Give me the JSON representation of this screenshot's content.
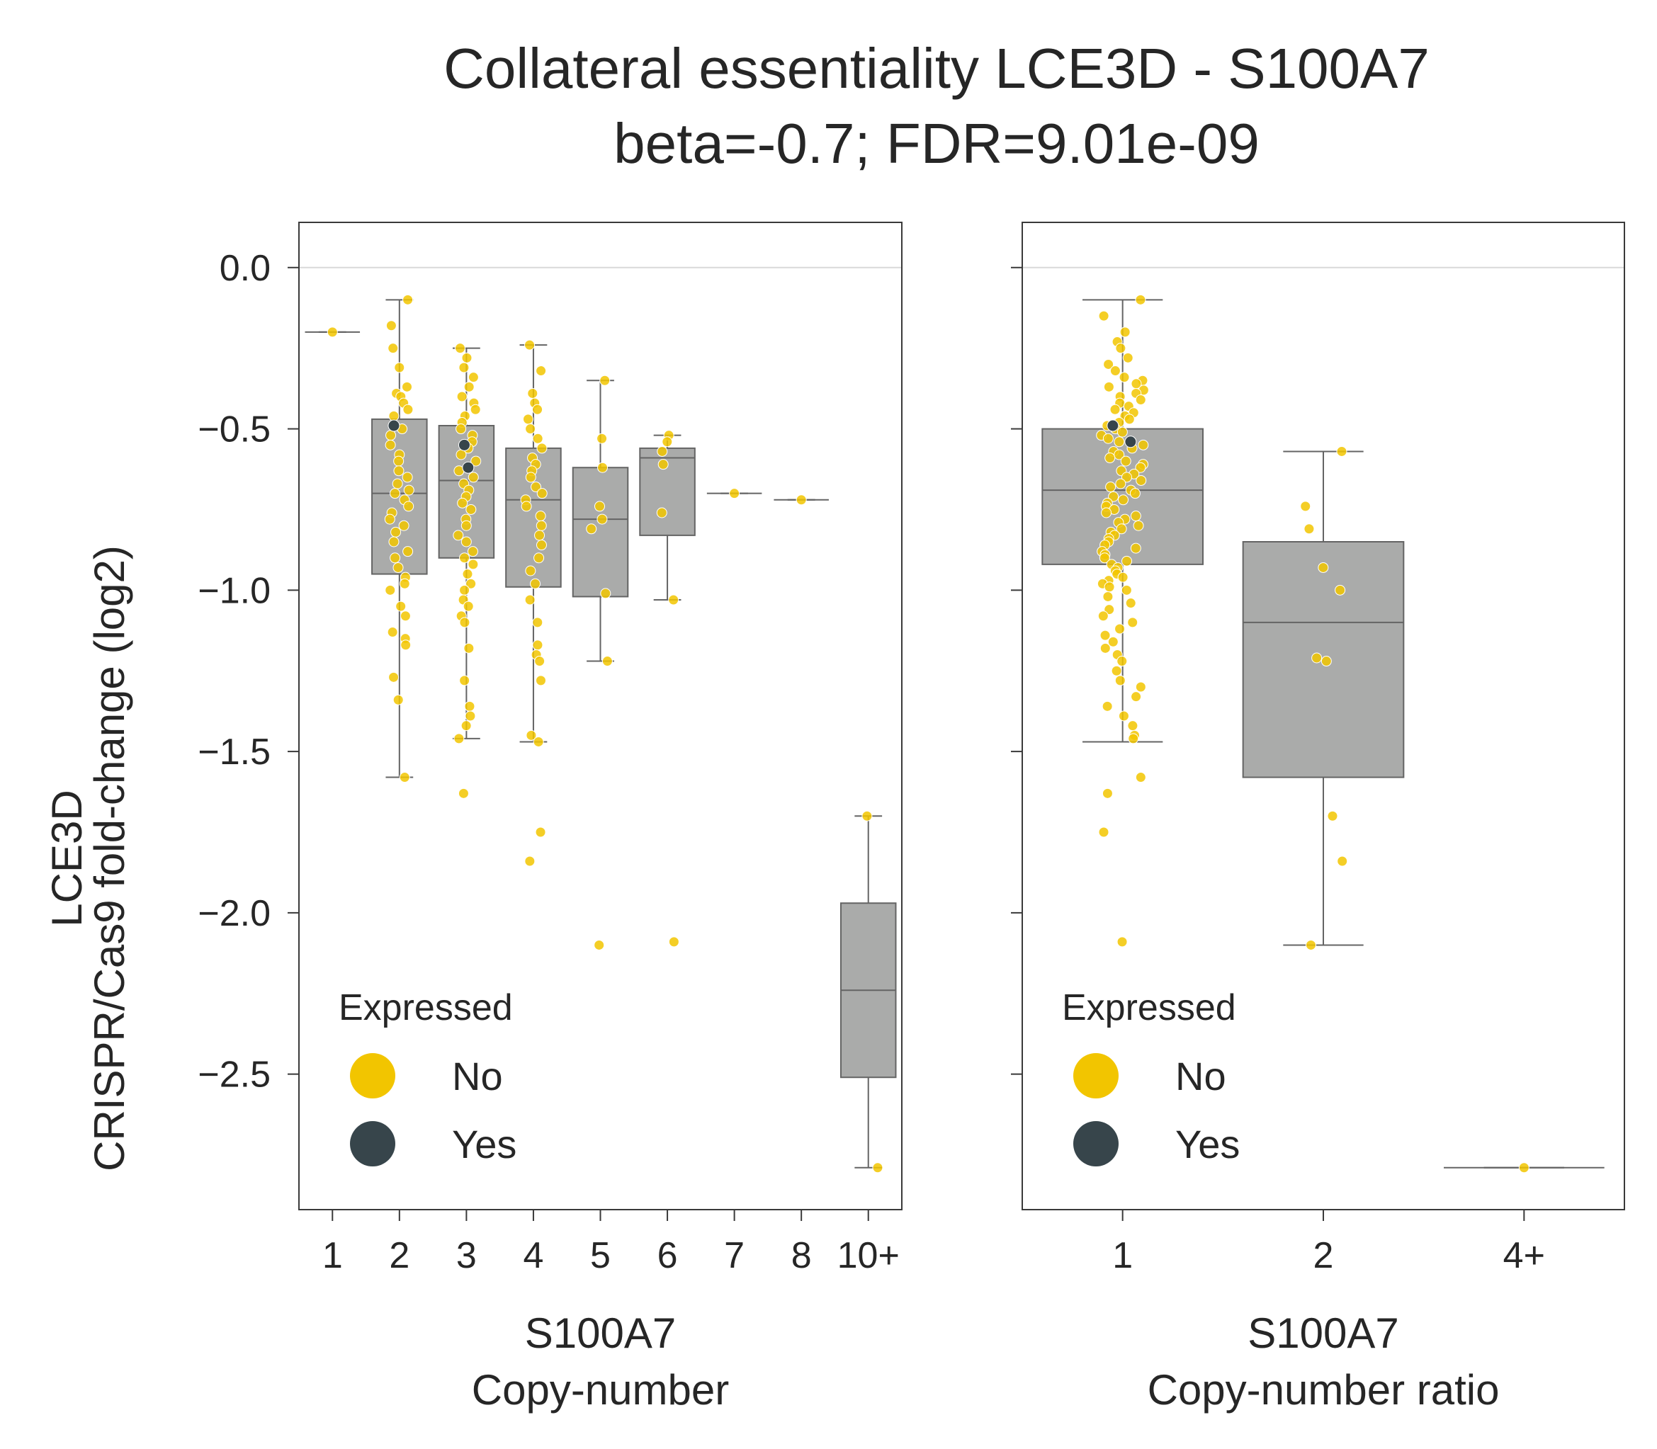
{
  "figure": {
    "title_line1": "Collateral essentiality LCE3D - S100A7",
    "title_line2": "beta=-0.7; FDR=9.01e-09",
    "ylabel_line1": "LCE3D",
    "ylabel_line2": "CRISPR/Cas9 fold-change (log2)"
  },
  "colors": {
    "box_fill": "#aaabaa",
    "box_edge": "#646464",
    "not_expressed": "#f2c500",
    "expressed": "#37454b",
    "frame": "#3a3a3a",
    "zero_line": "#d9d9d9"
  },
  "legend": {
    "title": "Expressed",
    "items": [
      {
        "label": "No",
        "color": "#f2c500"
      },
      {
        "label": "Yes",
        "color": "#37454b"
      }
    ]
  },
  "chart_data": [
    {
      "type": "box",
      "xlabel_line1": "S100A7",
      "xlabel_line2": "Copy-number",
      "ylim": [
        -2.92,
        0.14
      ],
      "yticks": [
        {
          "value": 0.0,
          "label": "0.0"
        },
        {
          "value": -0.5,
          "label": "−0.5"
        },
        {
          "value": -1.0,
          "label": "−1.0"
        },
        {
          "value": -1.5,
          "label": "−1.5"
        },
        {
          "value": -2.0,
          "label": "−2.0"
        },
        {
          "value": -2.5,
          "label": "−2.5"
        }
      ],
      "legend_position": "lower-left",
      "categories": [
        {
          "label": "1",
          "q1": -0.2,
          "median": -0.2,
          "q3": -0.2,
          "whisker_low": -0.2,
          "whisker_high": -0.2,
          "no": [
            -0.2
          ],
          "yes": []
        },
        {
          "label": "2",
          "q1": -0.95,
          "median": -0.7,
          "q3": -0.47,
          "whisker_low": -1.58,
          "whisker_high": -0.1,
          "no": [
            -0.1,
            -0.18,
            -0.25,
            -0.31,
            -0.37,
            -0.39,
            -0.4,
            -0.42,
            -0.44,
            -0.46,
            -0.5,
            -0.52,
            -0.55,
            -0.58,
            -0.6,
            -0.63,
            -0.65,
            -0.67,
            -0.69,
            -0.7,
            -0.72,
            -0.74,
            -0.76,
            -0.78,
            -0.8,
            -0.82,
            -0.85,
            -0.88,
            -0.9,
            -0.93,
            -0.96,
            -0.98,
            -1.0,
            -1.05,
            -1.08,
            -1.13,
            -1.15,
            -1.17,
            -1.27,
            -1.34,
            -1.58
          ],
          "yes": [
            -0.49
          ]
        },
        {
          "label": "3",
          "q1": -0.9,
          "median": -0.66,
          "q3": -0.49,
          "whisker_low": -1.46,
          "whisker_high": -0.25,
          "no": [
            -0.25,
            -0.28,
            -0.31,
            -0.34,
            -0.37,
            -0.4,
            -0.42,
            -0.44,
            -0.46,
            -0.48,
            -0.5,
            -0.52,
            -0.54,
            -0.56,
            -0.58,
            -0.6,
            -0.63,
            -0.65,
            -0.67,
            -0.69,
            -0.71,
            -0.73,
            -0.75,
            -0.78,
            -0.8,
            -0.83,
            -0.85,
            -0.88,
            -0.9,
            -0.92,
            -0.95,
            -0.98,
            -1.0,
            -1.03,
            -1.05,
            -1.08,
            -1.1,
            -1.18,
            -1.28,
            -1.36,
            -1.39,
            -1.42,
            -1.46,
            -1.63
          ],
          "yes": [
            -0.55,
            -0.62
          ]
        },
        {
          "label": "4",
          "q1": -0.99,
          "median": -0.72,
          "q3": -0.56,
          "whisker_low": -1.47,
          "whisker_high": -0.24,
          "no": [
            -0.24,
            -0.32,
            -0.39,
            -0.42,
            -0.44,
            -0.47,
            -0.5,
            -0.53,
            -0.56,
            -0.59,
            -0.61,
            -0.63,
            -0.65,
            -0.68,
            -0.7,
            -0.72,
            -0.74,
            -0.77,
            -0.8,
            -0.83,
            -0.86,
            -0.9,
            -0.94,
            -0.98,
            -1.03,
            -1.1,
            -1.17,
            -1.2,
            -1.22,
            -1.28,
            -1.45,
            -1.47,
            -1.75,
            -1.84
          ],
          "yes": []
        },
        {
          "label": "5",
          "q1": -1.02,
          "median": -0.78,
          "q3": -0.62,
          "whisker_low": -1.22,
          "whisker_high": -0.35,
          "no": [
            -0.35,
            -0.53,
            -0.62,
            -0.74,
            -0.78,
            -0.81,
            -1.01,
            -1.22,
            -2.1
          ],
          "yes": []
        },
        {
          "label": "6",
          "q1": -0.83,
          "median": -0.59,
          "q3": -0.56,
          "whisker_low": -1.03,
          "whisker_high": -0.52,
          "no": [
            -0.52,
            -0.54,
            -0.57,
            -0.61,
            -0.76,
            -1.03,
            -2.09
          ],
          "yes": []
        },
        {
          "label": "7",
          "q1": -0.7,
          "median": -0.7,
          "q3": -0.7,
          "whisker_low": -0.7,
          "whisker_high": -0.7,
          "no": [
            -0.7
          ],
          "yes": []
        },
        {
          "label": "8",
          "q1": -0.72,
          "median": -0.72,
          "q3": -0.72,
          "whisker_low": -0.72,
          "whisker_high": -0.72,
          "no": [
            -0.72
          ],
          "yes": []
        },
        {
          "label": "10+",
          "q1": -2.51,
          "median": -2.24,
          "q3": -1.97,
          "whisker_low": -2.79,
          "whisker_high": -1.7,
          "no": [
            -1.7,
            -2.79
          ],
          "yes": []
        }
      ]
    },
    {
      "type": "box",
      "xlabel_line1": "S100A7",
      "xlabel_line2": "Copy-number ratio",
      "ylim": [
        -2.92,
        0.14
      ],
      "legend_position": "lower-left",
      "categories": [
        {
          "label": "1",
          "q1": -0.92,
          "median": -0.69,
          "q3": -0.5,
          "whisker_low": -1.47,
          "whisker_high": -0.1,
          "no": [
            -0.1,
            -0.15,
            -0.2,
            -0.23,
            -0.25,
            -0.28,
            -0.3,
            -0.32,
            -0.34,
            -0.35,
            -0.36,
            -0.37,
            -0.38,
            -0.39,
            -0.4,
            -0.41,
            -0.42,
            -0.43,
            -0.44,
            -0.45,
            -0.46,
            -0.47,
            -0.48,
            -0.49,
            -0.5,
            -0.51,
            -0.52,
            -0.53,
            -0.54,
            -0.55,
            -0.56,
            -0.57,
            -0.58,
            -0.59,
            -0.6,
            -0.61,
            -0.62,
            -0.63,
            -0.64,
            -0.65,
            -0.66,
            -0.67,
            -0.68,
            -0.69,
            -0.7,
            -0.71,
            -0.72,
            -0.73,
            -0.74,
            -0.75,
            -0.76,
            -0.77,
            -0.78,
            -0.79,
            -0.8,
            -0.81,
            -0.82,
            -0.83,
            -0.84,
            -0.85,
            -0.86,
            -0.87,
            -0.88,
            -0.89,
            -0.9,
            -0.91,
            -0.92,
            -0.93,
            -0.94,
            -0.95,
            -0.96,
            -0.97,
            -0.98,
            -0.99,
            -1.0,
            -1.02,
            -1.04,
            -1.06,
            -1.08,
            -1.1,
            -1.12,
            -1.14,
            -1.16,
            -1.18,
            -1.2,
            -1.22,
            -1.25,
            -1.28,
            -1.3,
            -1.33,
            -1.36,
            -1.39,
            -1.42,
            -1.45,
            -1.46,
            -1.58,
            -1.63,
            -1.75,
            -2.09
          ],
          "yes": [
            -0.49,
            -0.54
          ]
        },
        {
          "label": "2",
          "q1": -1.58,
          "median": -1.1,
          "q3": -0.85,
          "whisker_low": -2.1,
          "whisker_high": -0.57,
          "no": [
            -0.57,
            -0.74,
            -0.81,
            -0.93,
            -1.0,
            -1.21,
            -1.22,
            -1.7,
            -1.84,
            -2.1
          ],
          "yes": []
        },
        {
          "label": "4+",
          "q1": -2.79,
          "median": -2.79,
          "q3": -2.79,
          "whisker_low": -2.79,
          "whisker_high": -2.79,
          "no": [
            -2.79
          ],
          "yes": []
        }
      ]
    }
  ]
}
